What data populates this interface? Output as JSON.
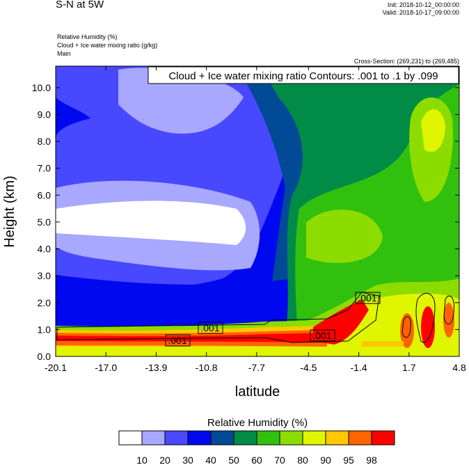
{
  "header": {
    "title": "S-N at 5W",
    "init": "Init: 2018-10-12_00:00:00",
    "valid": "Valid: 2018-10-17_09:00:00",
    "fields": [
      "Relative Humidity   (%)",
      "Cloud + Ice water mixing ratio   (g/kg)",
      "Main"
    ],
    "cross_section": "Cross-Section: (269,231) to (269,485)"
  },
  "chart_data": {
    "type": "heatmap",
    "title": "Cloud + Ice water mixing ratio Contours: .001 to .1 by .099",
    "xlabel": "latitude",
    "ylabel": "Height (km)",
    "xlim": [
      -20.1,
      4.8
    ],
    "ylim": [
      0,
      10.8
    ],
    "xticks": [
      "-20.1",
      "-17.0",
      "-13.9",
      "-10.8",
      "-7.7",
      "-4.5",
      "-1.4",
      "1.7",
      "4.8"
    ],
    "yticks": [
      "0.0",
      "1.0",
      "2.0",
      "3.0",
      "4.0",
      "5.0",
      "6.0",
      "7.0",
      "8.0",
      "9.0",
      "10.0"
    ],
    "contour_labels": [
      ".001",
      ".001",
      ".001",
      ".001"
    ],
    "colorbar": {
      "title": "Relative Humidity  (%)",
      "levels": [
        "10",
        "20",
        "30",
        "40",
        "50",
        "60",
        "70",
        "80",
        "90",
        "95",
        "98"
      ],
      "colors": [
        "#ffffff",
        "#a8a8ff",
        "#4848ff",
        "#0008f0",
        "#004a96",
        "#008c46",
        "#32c00f",
        "#8cdc00",
        "#e0f500",
        "#ffc800",
        "#ff6400",
        "#ff0000"
      ]
    }
  }
}
